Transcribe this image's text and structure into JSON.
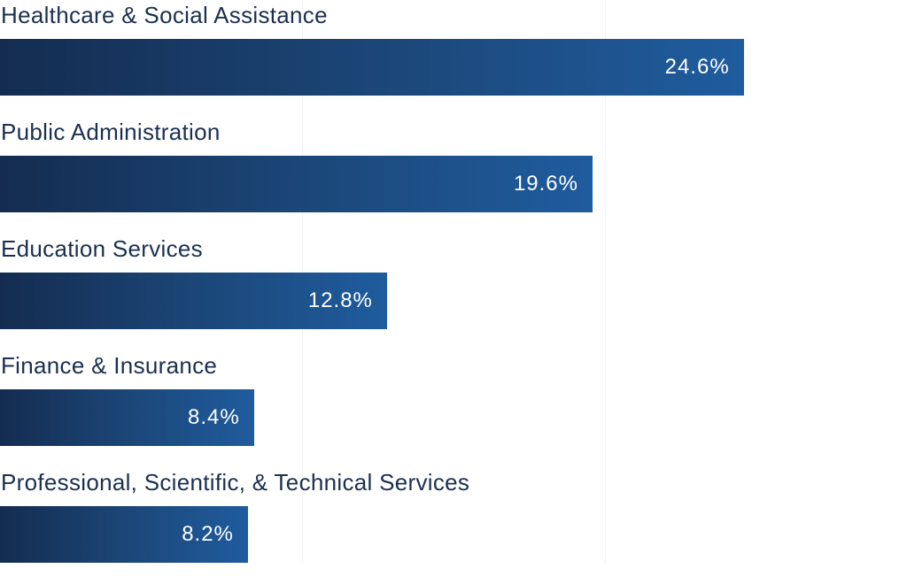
{
  "chart_data": {
    "type": "bar",
    "orientation": "horizontal",
    "categories": [
      "Healthcare & Social Assistance",
      "Public Administration",
      "Education Services",
      "Finance & Insurance",
      "Professional, Scientific, & Technical Services"
    ],
    "values": [
      24.6,
      19.6,
      12.8,
      8.4,
      8.2
    ],
    "value_labels": [
      "24.6%",
      "19.6%",
      "12.8%",
      "8.4%",
      "8.2%"
    ],
    "title": "",
    "xlabel": "",
    "ylabel": "",
    "xlim": [
      0,
      30
    ],
    "gridlines": [
      10,
      20
    ],
    "grid": true,
    "colors": {
      "bar_start": "#142c50",
      "bar_end": "#1f5c9e",
      "label": "#1b3050"
    }
  }
}
